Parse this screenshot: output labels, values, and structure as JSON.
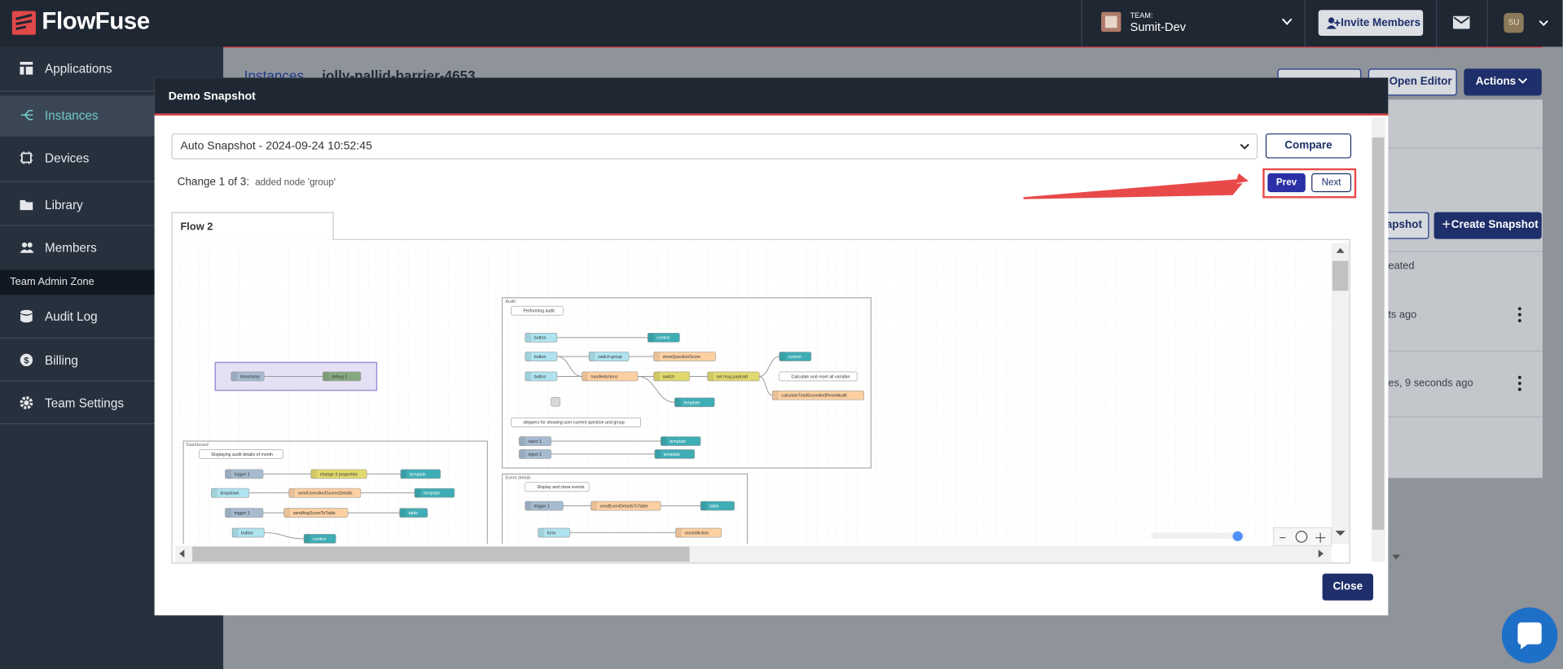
{
  "header": {
    "brand": "FlowFuse",
    "team_label": "TEAM:",
    "team_name": "Sumit-Dev",
    "invite_button": "Invite Members",
    "avatar": "SU"
  },
  "sidebar": {
    "items": [
      "Applications",
      "Instances",
      "Devices",
      "Library",
      "Members"
    ],
    "section": "Team Admin Zone",
    "admin_items": [
      "Audit Log",
      "Billing",
      "Team Settings"
    ]
  },
  "background": {
    "breadcrumb": "Instances",
    "instance_name": "jolly-pallid-barrier-4653",
    "open_editor": "Open Editor",
    "actions": "Actions",
    "snapshot_fragment": "apshot",
    "create_snapshot": "Create Snapshot",
    "column_fragment": "eated",
    "row_fragments": [
      "ts ago",
      "es, 9 seconds ago"
    ]
  },
  "modal": {
    "title": "Demo Snapshot",
    "select": "Auto Snapshot - 2024-09-24 10:52:45",
    "compare": "Compare",
    "change_label": "Change 1 of 3:",
    "change_detail": "added node 'group'",
    "prev": "Prev",
    "next": "Next",
    "tab": "Flow 2",
    "close": "Close",
    "flow": {
      "groups": [
        {
          "label": "Audit"
        },
        {
          "label": "Dashboard"
        },
        {
          "label": "Event details"
        }
      ],
      "nodes": [
        {
          "label": "timestamp",
          "kind": "inject"
        },
        {
          "label": "debug 1",
          "kind": "debug"
        },
        {
          "label": "Performing audit",
          "kind": "comment"
        },
        {
          "label": "button",
          "kind": "ui-in"
        },
        {
          "label": "control",
          "kind": "ui"
        },
        {
          "label": "button",
          "kind": "ui-in"
        },
        {
          "label": "switch-group",
          "kind": "ui-in"
        },
        {
          "label": "storeQuestionScore",
          "kind": "function"
        },
        {
          "label": "button",
          "kind": "ui-in"
        },
        {
          "label": "handleActions",
          "kind": "function"
        },
        {
          "label": "switch",
          "kind": "change"
        },
        {
          "label": "set msg.payload",
          "kind": "change"
        },
        {
          "label": "control",
          "kind": "ui"
        },
        {
          "label": "Calculate and reset all variable",
          "kind": "comment"
        },
        {
          "label": "calculateTotalScoreAndResetAudit",
          "kind": "function"
        },
        {
          "label": "template",
          "kind": "ui"
        },
        {
          "label": "steppers for showing user current question and group",
          "kind": "comment"
        },
        {
          "label": "inject 1",
          "kind": "inject"
        },
        {
          "label": "template",
          "kind": "ui"
        },
        {
          "label": "inject 1",
          "kind": "inject"
        },
        {
          "label": "template",
          "kind": "ui"
        },
        {
          "label": "Displaying audit details of month",
          "kind": "comment"
        },
        {
          "label": "trigger 1",
          "kind": "inject"
        },
        {
          "label": "change 3 properties",
          "kind": "change"
        },
        {
          "label": "template",
          "kind": "ui"
        },
        {
          "label": "dropdown",
          "kind": "ui-in"
        },
        {
          "label": "sendUsersAndScoresDetails",
          "kind": "function"
        },
        {
          "label": "template",
          "kind": "ui"
        },
        {
          "label": "trigger 1",
          "kind": "inject"
        },
        {
          "label": "sendAvgScoreToTable",
          "kind": "function"
        },
        {
          "label": "table",
          "kind": "ui"
        },
        {
          "label": "button",
          "kind": "ui-in"
        },
        {
          "label": "control",
          "kind": "ui"
        },
        {
          "label": "Display and close events",
          "kind": "comment"
        },
        {
          "label": "trigger 1",
          "kind": "inject"
        },
        {
          "label": "sendEventDetailsToTable",
          "kind": "function"
        },
        {
          "label": "table",
          "kind": "ui"
        },
        {
          "label": "form",
          "kind": "ui-in"
        },
        {
          "label": "closedAction",
          "kind": "function"
        }
      ]
    }
  }
}
